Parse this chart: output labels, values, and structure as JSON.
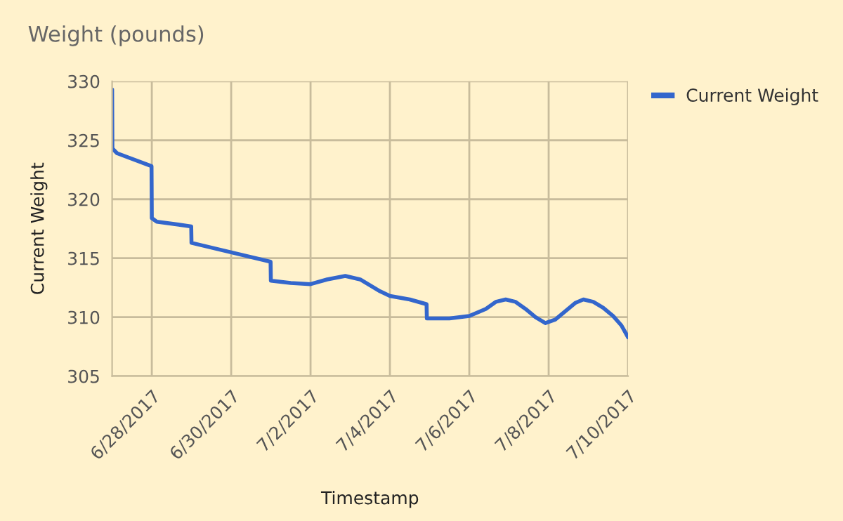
{
  "chart_data": {
    "type": "line",
    "title": "Weight (pounds)",
    "xlabel": "Timestamp",
    "ylabel": "Current Weight",
    "x": [
      "2017-06-27T00:00",
      "2017-06-27T00:10",
      "2017-06-27T03:00",
      "2017-06-27T23:50",
      "2017-06-28T00:00",
      "2017-06-28T03:00",
      "2017-06-28T23:50",
      "2017-06-29T00:00",
      "2017-06-30T00:00",
      "2017-06-30T23:50",
      "2017-07-01T00:00",
      "2017-07-01T12:00",
      "2017-07-02T00:00",
      "2017-07-02T10:00",
      "2017-07-02T21:00",
      "2017-07-03T06:00",
      "2017-07-03T12:00",
      "2017-07-03T18:00",
      "2017-07-04T00:00",
      "2017-07-04T12:00",
      "2017-07-04T22:10",
      "2017-07-04T22:20",
      "2017-07-05T12:00",
      "2017-07-06T00:00",
      "2017-07-06T10:00",
      "2017-07-06T16:00",
      "2017-07-06T22:00",
      "2017-07-07T04:00",
      "2017-07-07T10:00",
      "2017-07-07T16:00",
      "2017-07-07T22:00",
      "2017-07-08T04:00",
      "2017-07-08T10:00",
      "2017-07-08T16:00",
      "2017-07-08T21:00",
      "2017-07-09T03:00",
      "2017-07-09T09:00",
      "2017-07-09T15:00",
      "2017-07-09T20:00",
      "2017-07-10T00:00"
    ],
    "series": [
      {
        "name": "Current Weight",
        "color": "#3366cc",
        "values": [
          329.3,
          324.3,
          323.9,
          322.8,
          318.4,
          318.1,
          317.7,
          316.3,
          315.5,
          314.7,
          313.1,
          312.9,
          312.8,
          313.2,
          313.5,
          313.2,
          312.7,
          312.2,
          311.8,
          311.5,
          311.1,
          309.9,
          309.9,
          310.1,
          310.7,
          311.3,
          311.5,
          311.3,
          310.7,
          310.0,
          309.5,
          309.8,
          310.5,
          311.2,
          311.5,
          311.3,
          310.8,
          310.1,
          309.3,
          308.3
        ]
      }
    ],
    "xlim": [
      "2017-06-27",
      "2017-07-10"
    ],
    "xticks": [
      {
        "value": "2017-06-28",
        "label": "6/28/2017"
      },
      {
        "value": "2017-06-30",
        "label": "6/30/2017"
      },
      {
        "value": "2017-07-02",
        "label": "7/2/2017"
      },
      {
        "value": "2017-07-04",
        "label": "7/4/2017"
      },
      {
        "value": "2017-07-06",
        "label": "7/6/2017"
      },
      {
        "value": "2017-07-08",
        "label": "7/8/2017"
      },
      {
        "value": "2017-07-10",
        "label": "7/10/2017"
      }
    ],
    "ylim": [
      305,
      330
    ],
    "yticks": [
      305,
      310,
      315,
      320,
      325,
      330
    ],
    "grid": true,
    "legend": "top right",
    "marker": "none",
    "line_style": "solid"
  }
}
